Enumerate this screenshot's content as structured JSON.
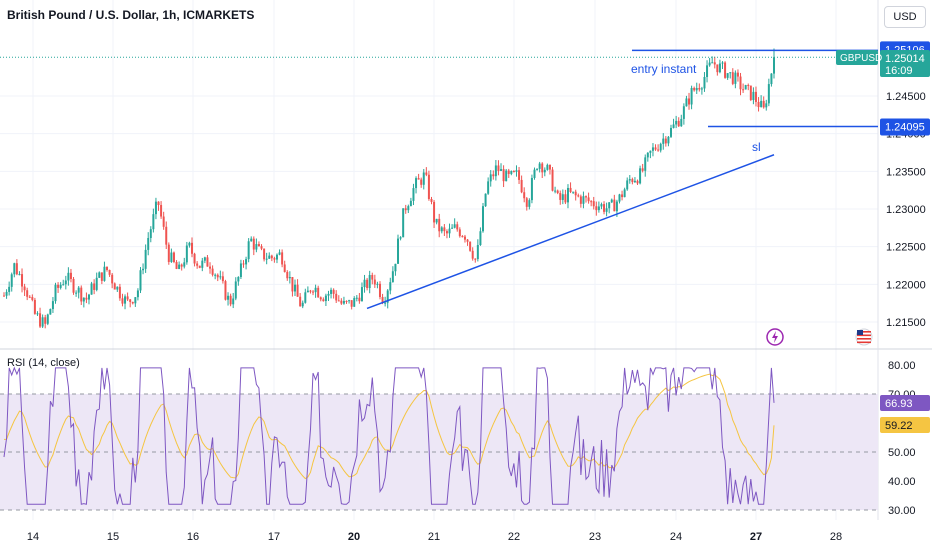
{
  "header": {
    "symbol_title": "British Pound / U.S. Dollar, 1h, ICMARKETS",
    "currency_button": "USD"
  },
  "price_labels": {
    "top_line": "1.25106",
    "current_symbol": "GBPUSD",
    "current_price": "1.25014",
    "countdown": "16:09",
    "bottom_line": "1.24095"
  },
  "annotations": {
    "entry": "entry instant",
    "sl": "sl"
  },
  "rsi": {
    "label": "RSI (14, close)",
    "rsi_value": "66.93",
    "ma_value": "59.22"
  },
  "colors": {
    "up": "#26a69a",
    "down": "#ef5350",
    "annotation_blue": "#1e53e5",
    "rsi_line": "#7e57c2",
    "rsi_ma": "#f5c542",
    "rsi_band": "#ede7f6"
  },
  "chart_data": [
    {
      "type": "candlestick",
      "title": "British Pound / U.S. Dollar, 1h, ICMARKETS",
      "x_ticks": [
        "14",
        "15",
        "16",
        "17",
        "20",
        "21",
        "22",
        "23",
        "24",
        "27",
        "28"
      ],
      "y_ticks": [
        "1.21500",
        "1.22000",
        "1.22500",
        "1.23000",
        "1.23500",
        "1.24000",
        "1.24500"
      ],
      "ylim": [
        1.2125,
        1.2535
      ],
      "lines": [
        {
          "name": "entry instant",
          "price": 1.25106
        },
        {
          "name": "sl",
          "price": 1.24095
        },
        {
          "name": "trendline",
          "from": [
            1.2167,
            "Jun 20"
          ],
          "to": [
            1.2372,
            "Jun 27"
          ]
        }
      ],
      "last_close": 1.25014,
      "path_prices": [
        1.2185,
        1.2225,
        1.22,
        1.216,
        1.2145,
        1.219,
        1.221,
        1.2195,
        1.218,
        1.2205,
        1.222,
        1.2195,
        1.2175,
        1.219,
        1.226,
        1.231,
        1.224,
        1.2215,
        1.225,
        1.2225,
        1.223,
        1.2205,
        1.2175,
        1.2215,
        1.226,
        1.224,
        1.2235,
        1.224,
        1.22,
        1.217,
        1.22,
        1.2185,
        1.219,
        1.2172,
        1.2175,
        1.2195,
        1.221,
        1.218,
        1.2225,
        1.23,
        1.233,
        1.2345,
        1.228,
        1.2265,
        1.2275,
        1.2265,
        1.223,
        1.233,
        1.2355,
        1.234,
        1.2345,
        1.231,
        1.2365,
        1.235,
        1.231,
        1.232,
        1.2315,
        1.231,
        1.2305,
        1.23,
        1.2315,
        1.234,
        1.2345,
        1.2375,
        1.239,
        1.2405,
        1.2425,
        1.2455,
        1.247,
        1.2495,
        1.2485,
        1.2475,
        1.246,
        1.245,
        1.243,
        1.25
      ]
    },
    {
      "type": "line",
      "title": "RSI (14, close)",
      "y_ticks": [
        "30.00",
        "40.00",
        "50.00",
        "70.00",
        "80.00"
      ],
      "ylim": [
        30,
        80
      ],
      "band": [
        30,
        70
      ],
      "series": [
        {
          "name": "RSI",
          "last": 66.93
        },
        {
          "name": "MA",
          "last": 59.22
        }
      ]
    }
  ]
}
